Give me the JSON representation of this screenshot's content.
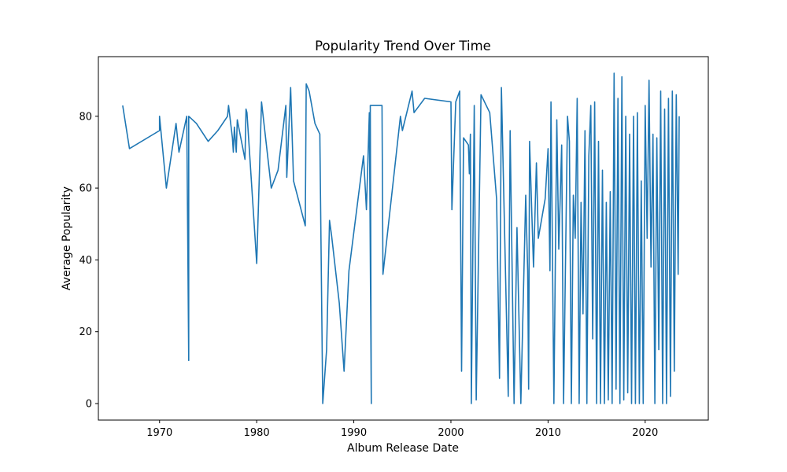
{
  "chart_data": {
    "type": "line",
    "title": "Popularity Trend Over Time",
    "xlabel": "Album Release Date",
    "ylabel": "Average Popularity",
    "x_ticks": [
      "1970",
      "1980",
      "1990",
      "2000",
      "2010",
      "2020"
    ],
    "y_ticks": [
      "0",
      "20",
      "40",
      "60",
      "80"
    ],
    "xlim": [
      1963.7,
      2026.5
    ],
    "ylim": [
      -4.6,
      96.6
    ],
    "grid": false,
    "colors": {
      "line": "#1f77b4"
    },
    "series": [
      {
        "x": [
          1966.2,
          1966.9,
          1970.0,
          1970.0,
          1970.7,
          1971.7,
          1972.0,
          1972.8,
          1973.0,
          1973.0,
          1973.8,
          1975.0,
          1976.0,
          1977.0,
          1977.1,
          1977.5,
          1977.6,
          1977.7,
          1977.9,
          1978.0,
          1978.8,
          1978.9,
          1979.0,
          1980.0,
          1980.5,
          1981.5,
          1982.2,
          1983.0,
          1983.1,
          1983.5,
          1983.8,
          1985.0,
          1985.1,
          1985.4,
          1986.0,
          1986.5,
          1986.8,
          1987.2,
          1987.5,
          1987.7,
          1988.5,
          1989.0,
          1989.5,
          1991.0,
          1991.3,
          1991.6,
          1991.8,
          1991.7,
          1991.9,
          1992.9,
          1993.0,
          1994.8,
          1995.0,
          1996.0,
          1996.2,
          1997.3,
          2000.0,
          2000.1,
          2000.5,
          2000.9,
          2001.1,
          2001.3,
          2001.8,
          2001.9,
          2002.0,
          2002.1,
          2002.4,
          2002.6,
          2003.1,
          2004.0,
          2004.7,
          2005.0,
          2005.2,
          2005.9,
          2006.1,
          2006.5,
          2006.8,
          2007.2,
          2007.7,
          2007.9,
          2008.0,
          2008.1,
          2008.5,
          2008.8,
          2009.0,
          2009.7,
          2010.0,
          2010.2,
          2010.3,
          2010.6,
          2010.9,
          2011.1,
          2011.4,
          2011.6,
          2012.0,
          2012.2,
          2012.4,
          2012.6,
          2012.8,
          2013.0,
          2013.2,
          2013.4,
          2013.6,
          2013.8,
          2014.0,
          2014.2,
          2014.4,
          2014.6,
          2014.8,
          2015.0,
          2015.2,
          2015.4,
          2015.6,
          2015.8,
          2016.0,
          2016.2,
          2016.4,
          2016.6,
          2016.8,
          2017.0,
          2017.2,
          2017.4,
          2017.6,
          2017.8,
          2018.0,
          2018.2,
          2018.4,
          2018.6,
          2018.8,
          2019.0,
          2019.2,
          2019.4,
          2019.6,
          2019.8,
          2020.0,
          2020.2,
          2020.4,
          2020.6,
          2020.8,
          2021.0,
          2021.2,
          2021.4,
          2021.6,
          2021.8,
          2022.0,
          2022.2,
          2022.4,
          2022.6,
          2022.8,
          2023.0,
          2023.2,
          2023.4,
          2023.5
        ],
        "y": [
          83,
          71,
          76,
          80,
          60,
          78,
          70,
          80,
          12,
          80,
          78,
          73,
          76,
          80,
          83,
          74,
          70,
          77,
          70,
          79,
          68,
          82,
          81,
          39,
          84,
          60,
          65,
          83,
          63,
          88,
          62,
          49.5,
          89,
          87,
          78,
          75,
          0,
          15,
          51,
          47,
          28,
          9,
          37,
          69,
          54,
          81,
          0,
          83,
          83,
          83,
          36,
          80,
          76,
          87,
          81,
          85,
          84,
          54,
          84,
          87,
          9,
          74,
          72,
          64,
          75,
          0,
          83,
          1,
          86,
          81,
          57,
          7,
          88,
          2,
          76,
          0,
          49,
          0,
          58,
          37,
          4,
          73,
          38,
          67,
          46,
          57,
          71,
          37,
          84,
          0,
          79,
          43,
          72,
          0,
          80,
          73,
          0,
          58,
          46,
          85,
          0,
          56,
          25,
          76,
          0,
          69,
          83,
          18,
          84,
          0,
          73,
          0,
          65,
          0,
          56,
          1,
          59,
          0,
          92,
          4,
          85,
          0,
          91,
          1,
          80,
          3,
          75,
          0,
          80,
          0,
          81,
          0,
          62,
          0,
          83,
          46,
          90,
          38,
          75,
          0,
          74,
          15,
          87,
          0,
          82,
          0,
          85,
          2,
          87,
          9,
          86,
          36,
          80
        ]
      }
    ]
  }
}
